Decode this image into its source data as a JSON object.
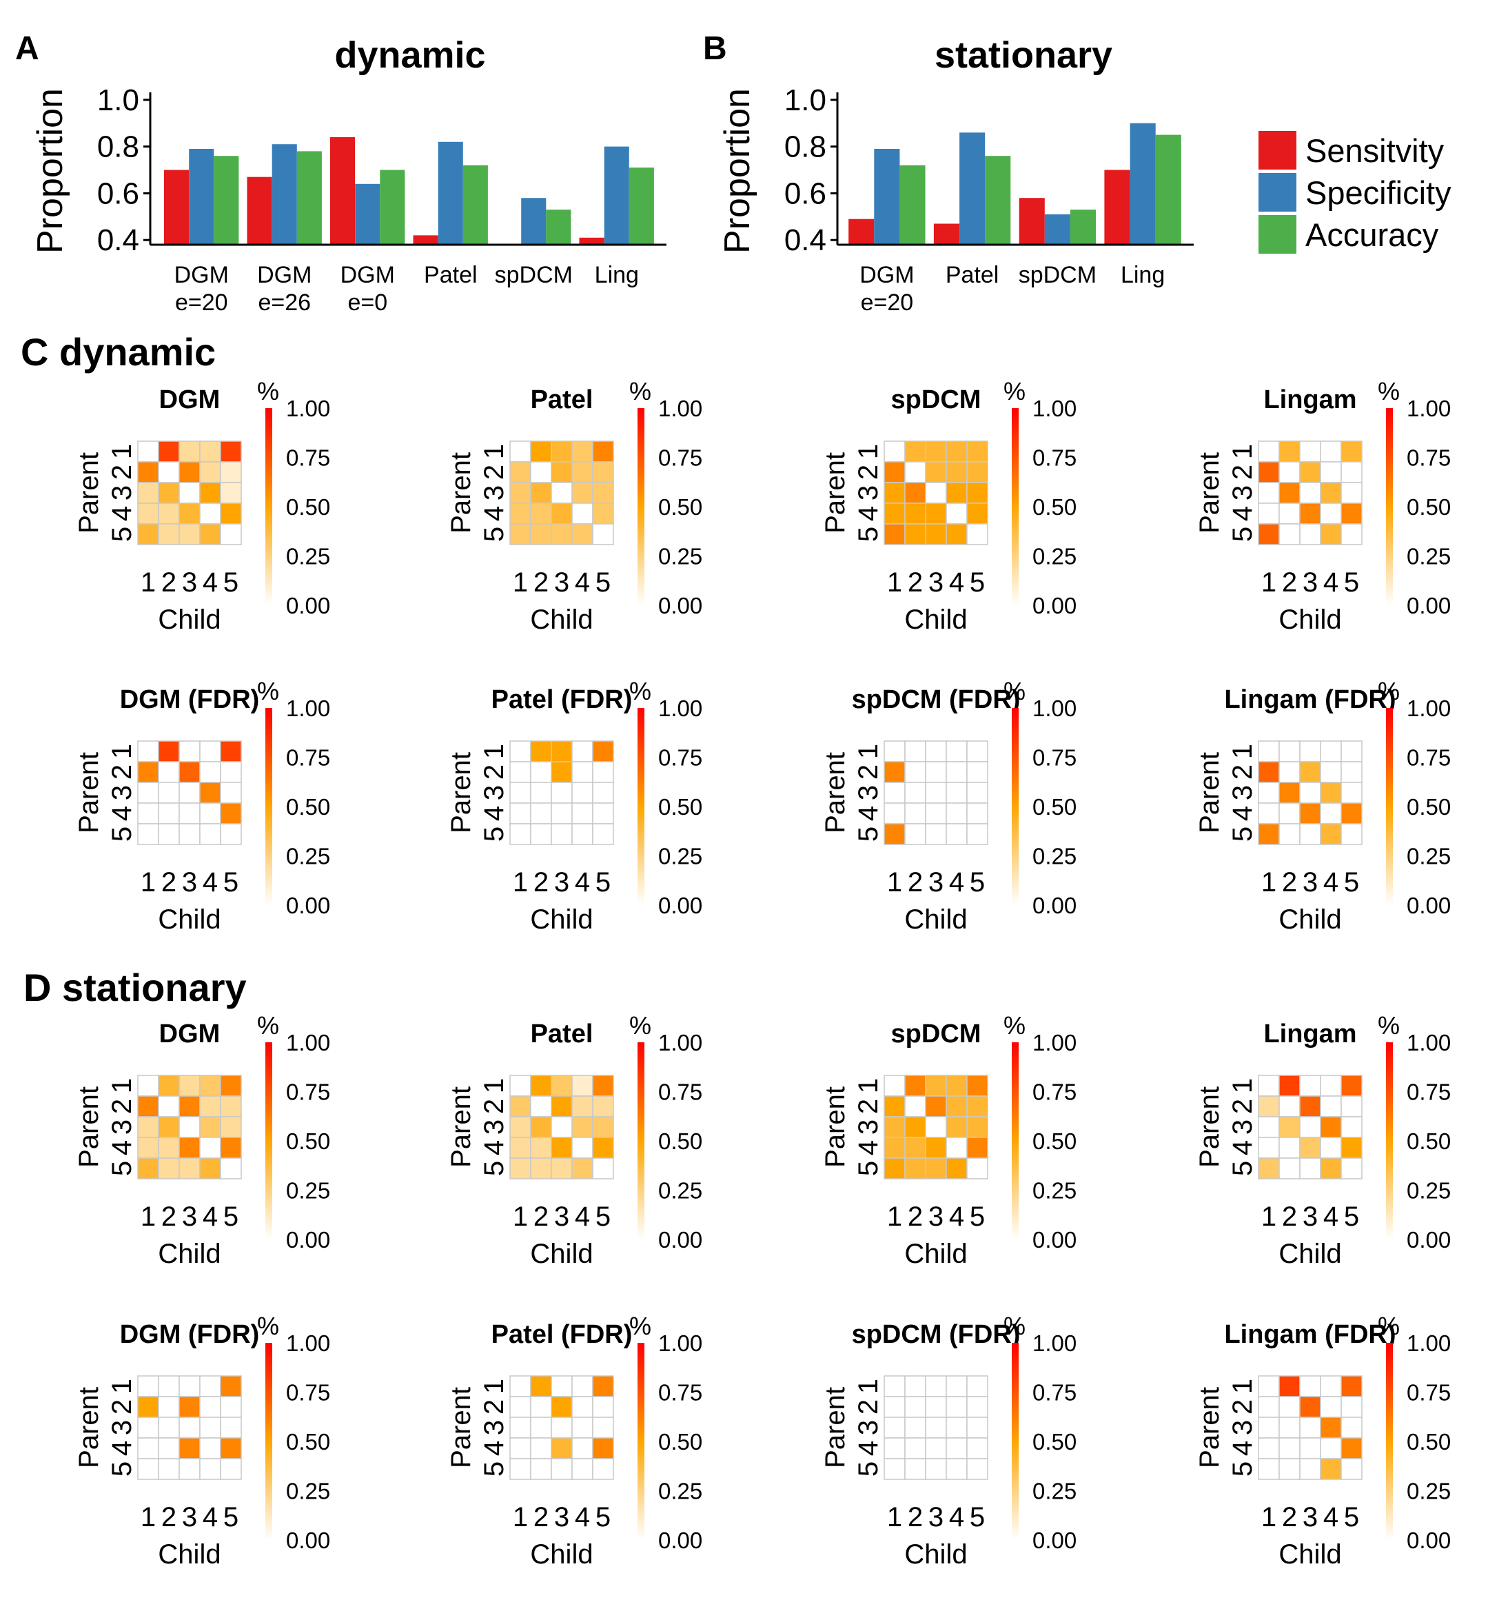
{
  "colors": {
    "sensitivity": "#e41a1c",
    "specificity": "#377eb8",
    "accuracy": "#4daf4a",
    "heat_low": "#ffffff",
    "heat_mid": "#ffa500",
    "heat_high": "#ff0000",
    "grid": "#c8c8c8"
  },
  "chart_data": [
    {
      "type": "bar",
      "panel": "A",
      "title": "dynamic",
      "ylabel": "Proportion",
      "ylim": [
        0.38,
        1.02
      ],
      "yticks": [
        "0.4",
        "0.6",
        "0.8",
        "1.0"
      ],
      "categories": [
        [
          "DGM",
          "e=20"
        ],
        [
          "DGM",
          "e=26"
        ],
        [
          "DGM",
          "e=0"
        ],
        [
          "Patel"
        ],
        [
          "spDCM"
        ],
        [
          "Ling"
        ]
      ],
      "series": [
        {
          "name": "Sensitvity",
          "values": [
            0.7,
            0.67,
            0.84,
            0.42,
            null,
            0.41
          ]
        },
        {
          "name": "Specificity",
          "values": [
            0.79,
            0.81,
            0.64,
            0.82,
            0.58,
            0.8
          ]
        },
        {
          "name": "Accuracy",
          "values": [
            0.76,
            0.78,
            0.7,
            0.72,
            0.53,
            0.71
          ]
        }
      ]
    },
    {
      "type": "bar",
      "panel": "B",
      "title": "stationary",
      "ylabel": "Proportion",
      "ylim": [
        0.38,
        1.02
      ],
      "yticks": [
        "0.4",
        "0.6",
        "0.8",
        "1.0"
      ],
      "categories": [
        [
          "DGM",
          "e=20"
        ],
        [
          "Patel"
        ],
        [
          "spDCM"
        ],
        [
          "Ling"
        ]
      ],
      "series": [
        {
          "name": "Sensitvity",
          "values": [
            0.49,
            0.47,
            0.58,
            0.7
          ]
        },
        {
          "name": "Specificity",
          "values": [
            0.79,
            0.86,
            0.51,
            0.9
          ]
        },
        {
          "name": "Accuracy",
          "values": [
            0.72,
            0.76,
            0.53,
            0.85
          ]
        }
      ]
    }
  ],
  "legend": [
    "Sensitvity",
    "Specificity",
    "Accuracy"
  ],
  "sections": [
    {
      "label": "C dynamic"
    },
    {
      "label": "D stationary"
    }
  ],
  "heatmap_common": {
    "ticks": [
      "1",
      "2",
      "3",
      "4",
      "5"
    ],
    "xlabel": "Child",
    "ylabel": "Parent",
    "colorbar_title": "%",
    "colorbar_ticks": [
      "0.00",
      "0.25",
      "0.50",
      "0.75",
      "1.00"
    ]
  },
  "heatmaps": [
    {
      "type": "heatmap",
      "title": "DGM",
      "values": [
        [
          0,
          0.8,
          0.2,
          0.2,
          0.8
        ],
        [
          0.6,
          0,
          0.6,
          0.2,
          0.1
        ],
        [
          0.2,
          0.4,
          0,
          0.5,
          0.1
        ],
        [
          0.2,
          0.2,
          0.4,
          0,
          0.5
        ],
        [
          0.4,
          0.2,
          0.2,
          0.4,
          0
        ]
      ]
    },
    {
      "type": "heatmap",
      "title": "Patel",
      "values": [
        [
          0,
          0.5,
          0.4,
          0.3,
          0.6
        ],
        [
          0.3,
          0,
          0.4,
          0.3,
          0.3
        ],
        [
          0.3,
          0.4,
          0,
          0.3,
          0.3
        ],
        [
          0.3,
          0.3,
          0.4,
          0,
          0.3
        ],
        [
          0.3,
          0.3,
          0.3,
          0.3,
          0
        ]
      ]
    },
    {
      "type": "heatmap",
      "title": "spDCM",
      "values": [
        [
          0,
          0.4,
          0.4,
          0.4,
          0.4
        ],
        [
          0.6,
          0,
          0.4,
          0.4,
          0.4
        ],
        [
          0.5,
          0.6,
          0,
          0.5,
          0.5
        ],
        [
          0.5,
          0.5,
          0.5,
          0,
          0.5
        ],
        [
          0.6,
          0.5,
          0.5,
          0.5,
          0
        ]
      ]
    },
    {
      "type": "heatmap",
      "title": "Lingam",
      "values": [
        [
          0,
          0.4,
          0,
          0,
          0.4
        ],
        [
          0.7,
          0,
          0.4,
          0,
          0
        ],
        [
          0,
          0.6,
          0,
          0.4,
          0
        ],
        [
          0,
          0,
          0.6,
          0,
          0.6
        ],
        [
          0.7,
          0,
          0,
          0.4,
          0
        ]
      ]
    },
    {
      "type": "heatmap",
      "title": "DGM (FDR)",
      "values": [
        [
          0,
          0.8,
          0,
          0,
          0.8
        ],
        [
          0.6,
          0,
          0.7,
          0,
          0
        ],
        [
          0,
          0,
          0,
          0.6,
          0
        ],
        [
          0,
          0,
          0,
          0,
          0.6
        ],
        [
          0,
          0,
          0,
          0,
          0
        ]
      ]
    },
    {
      "type": "heatmap",
      "title": "Patel (FDR)",
      "values": [
        [
          0,
          0.5,
          0.5,
          0,
          0.6
        ],
        [
          0,
          0,
          0.5,
          0,
          0
        ],
        [
          0,
          0,
          0,
          0,
          0
        ],
        [
          0,
          0,
          0,
          0,
          0
        ],
        [
          0,
          0,
          0,
          0,
          0
        ]
      ]
    },
    {
      "type": "heatmap",
      "title": "spDCM (FDR)",
      "values": [
        [
          0,
          0,
          0,
          0,
          0
        ],
        [
          0.6,
          0,
          0,
          0,
          0
        ],
        [
          0,
          0,
          0,
          0,
          0
        ],
        [
          0,
          0,
          0,
          0,
          0
        ],
        [
          0.6,
          0,
          0,
          0,
          0
        ]
      ]
    },
    {
      "type": "heatmap",
      "title": "Lingam (FDR)",
      "values": [
        [
          0,
          0,
          0,
          0,
          0
        ],
        [
          0.7,
          0,
          0.4,
          0,
          0
        ],
        [
          0,
          0.6,
          0,
          0.4,
          0
        ],
        [
          0,
          0,
          0.6,
          0,
          0.6
        ],
        [
          0.6,
          0,
          0,
          0.4,
          0
        ]
      ]
    },
    {
      "type": "heatmap",
      "title": "DGM",
      "values": [
        [
          0,
          0.4,
          0.2,
          0.3,
          0.6
        ],
        [
          0.6,
          0,
          0.6,
          0.2,
          0.2
        ],
        [
          0.2,
          0.4,
          0,
          0.3,
          0.2
        ],
        [
          0.2,
          0.2,
          0.6,
          0,
          0.6
        ],
        [
          0.4,
          0.2,
          0.2,
          0.4,
          0
        ]
      ]
    },
    {
      "type": "heatmap",
      "title": "Patel",
      "values": [
        [
          0,
          0.5,
          0.3,
          0.1,
          0.6
        ],
        [
          0.3,
          0,
          0.5,
          0.2,
          0.2
        ],
        [
          0.2,
          0.4,
          0,
          0.3,
          0.3
        ],
        [
          0.2,
          0.2,
          0.5,
          0,
          0.5
        ],
        [
          0.2,
          0.2,
          0.2,
          0.3,
          0
        ]
      ]
    },
    {
      "type": "heatmap",
      "title": "spDCM",
      "values": [
        [
          0,
          0.6,
          0.4,
          0.4,
          0.6
        ],
        [
          0.5,
          0,
          0.6,
          0.4,
          0.4
        ],
        [
          0.4,
          0.5,
          0,
          0.4,
          0.4
        ],
        [
          0.4,
          0.4,
          0.5,
          0,
          0.6
        ],
        [
          0.5,
          0.4,
          0.4,
          0.5,
          0
        ]
      ]
    },
    {
      "type": "heatmap",
      "title": "Lingam",
      "values": [
        [
          0,
          0.8,
          0,
          0,
          0.7
        ],
        [
          0.2,
          0,
          0.7,
          0,
          0
        ],
        [
          0,
          0.3,
          0,
          0.6,
          0
        ],
        [
          0,
          0,
          0.3,
          0,
          0.5
        ],
        [
          0.3,
          0,
          0,
          0.4,
          0
        ]
      ]
    },
    {
      "type": "heatmap",
      "title": "DGM (FDR)",
      "values": [
        [
          0,
          0,
          0,
          0,
          0.6
        ],
        [
          0.5,
          0,
          0.6,
          0,
          0
        ],
        [
          0,
          0,
          0,
          0,
          0
        ],
        [
          0,
          0,
          0.6,
          0,
          0.6
        ],
        [
          0,
          0,
          0,
          0,
          0
        ]
      ]
    },
    {
      "type": "heatmap",
      "title": "Patel (FDR)",
      "values": [
        [
          0,
          0.5,
          0,
          0,
          0.6
        ],
        [
          0,
          0,
          0.5,
          0,
          0
        ],
        [
          0,
          0,
          0,
          0,
          0
        ],
        [
          0,
          0,
          0.4,
          0,
          0.6
        ],
        [
          0,
          0,
          0,
          0,
          0
        ]
      ]
    },
    {
      "type": "heatmap",
      "title": "spDCM (FDR)",
      "values": [
        [
          0,
          0,
          0,
          0,
          0
        ],
        [
          0,
          0,
          0,
          0,
          0
        ],
        [
          0,
          0,
          0,
          0,
          0
        ],
        [
          0,
          0,
          0,
          0,
          0
        ],
        [
          0,
          0,
          0,
          0,
          0
        ]
      ]
    },
    {
      "type": "heatmap",
      "title": "Lingam (FDR)",
      "values": [
        [
          0,
          0.8,
          0,
          0,
          0.7
        ],
        [
          0,
          0,
          0.7,
          0,
          0
        ],
        [
          0,
          0,
          0,
          0.6,
          0
        ],
        [
          0,
          0,
          0,
          0,
          0.6
        ],
        [
          0,
          0,
          0,
          0.4,
          0
        ]
      ]
    }
  ]
}
